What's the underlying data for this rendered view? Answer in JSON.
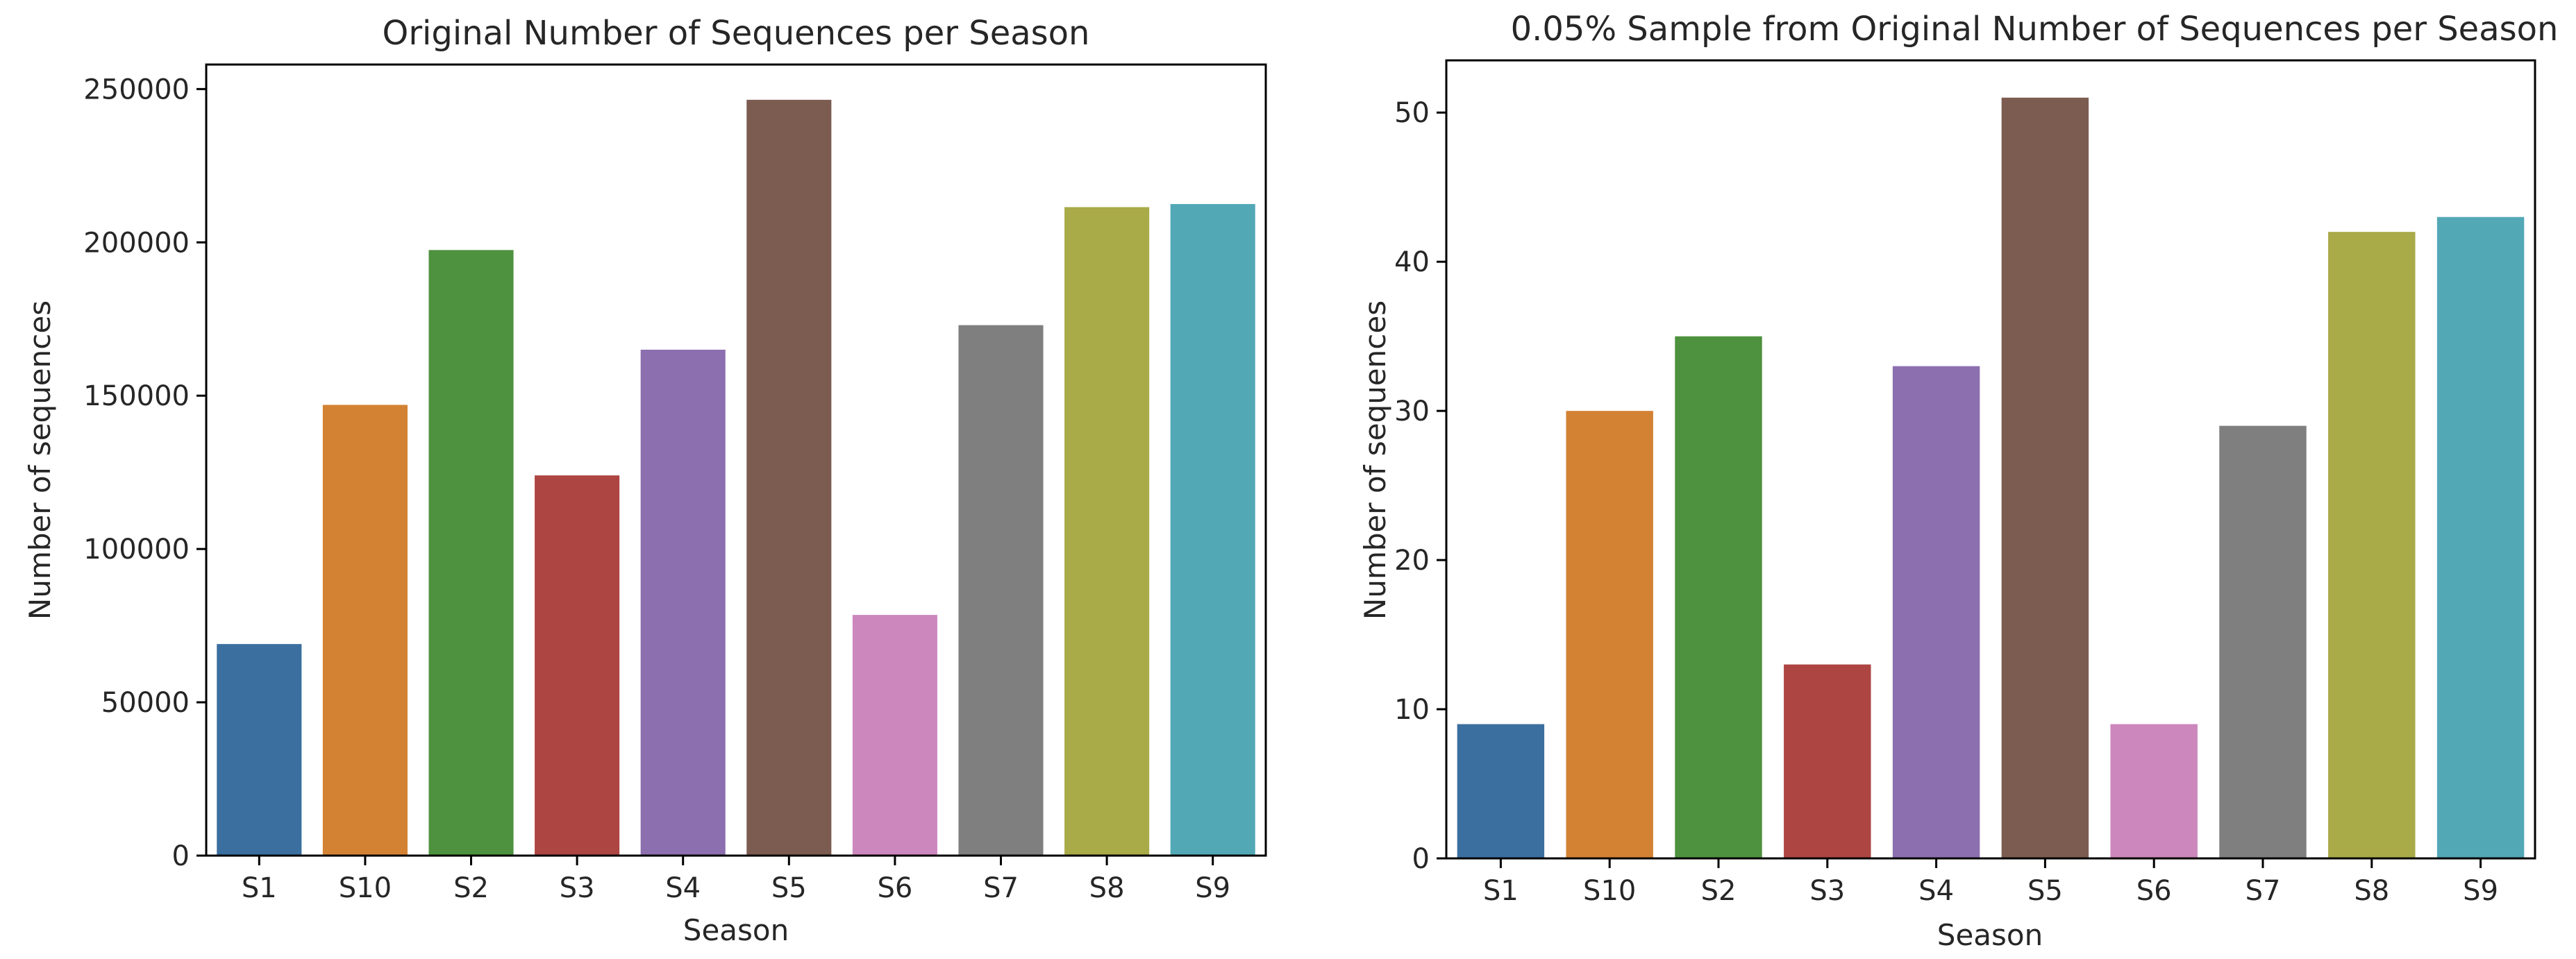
{
  "chart_data": [
    {
      "type": "bar",
      "title": "Original Number of Sequences per Season",
      "xlabel": "Season",
      "ylabel": "Number of sequences",
      "categories": [
        "S1",
        "S10",
        "S2",
        "S3",
        "S4",
        "S5",
        "S6",
        "S7",
        "S8",
        "S9"
      ],
      "values": [
        69000,
        147000,
        197500,
        124000,
        165000,
        246500,
        78500,
        173000,
        211500,
        212500
      ],
      "ylim": [
        0,
        258000
      ],
      "yticks": [
        0,
        50000,
        100000,
        150000,
        200000,
        250000
      ],
      "ytick_labels": [
        "0",
        "50000",
        "100000",
        "150000",
        "200000",
        "250000"
      ],
      "grid": false,
      "colors": [
        "#3b6f9f",
        "#d38233",
        "#4e913e",
        "#ad4542",
        "#8c6faf",
        "#7c5b50",
        "#cc87bd",
        "#7f7f7f",
        "#a9aa48",
        "#53a8b6"
      ]
    },
    {
      "type": "bar",
      "title": "0.05% Sample from Original Number of Sequences per Season",
      "xlabel": "Season",
      "ylabel": "Number of sequences",
      "categories": [
        "S1",
        "S10",
        "S2",
        "S3",
        "S4",
        "S5",
        "S6",
        "S7",
        "S8",
        "S9"
      ],
      "values": [
        9,
        30,
        35,
        13,
        33,
        51,
        9,
        29,
        42,
        43
      ],
      "ylim": [
        0,
        53.5
      ],
      "yticks": [
        0,
        10,
        20,
        30,
        40,
        50
      ],
      "ytick_labels": [
        "0",
        "10",
        "20",
        "30",
        "40",
        "50"
      ],
      "grid": false,
      "colors": [
        "#3b6f9f",
        "#d38233",
        "#4e913e",
        "#ad4542",
        "#8c6faf",
        "#7c5b50",
        "#cc87bd",
        "#7f7f7f",
        "#a9aa48",
        "#53a8b6"
      ]
    }
  ]
}
